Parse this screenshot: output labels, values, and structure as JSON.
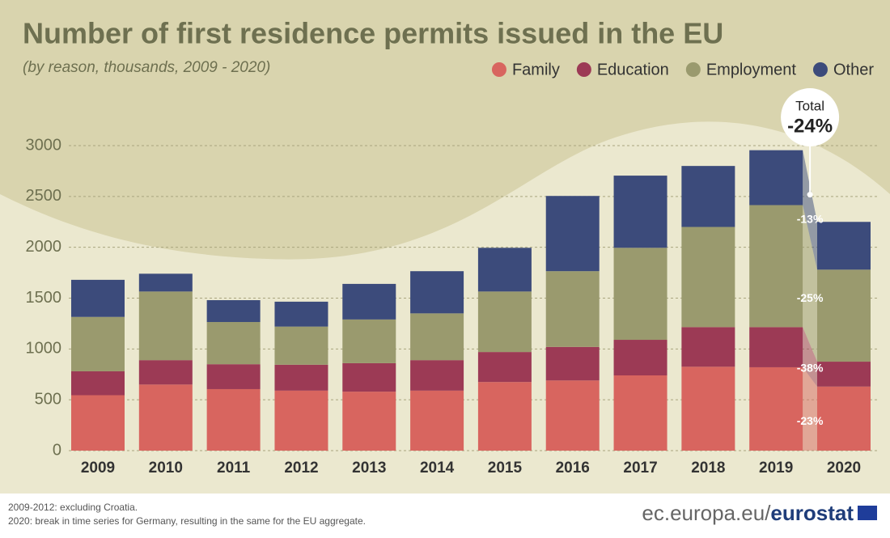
{
  "chart_data": {
    "type": "stacked-bar",
    "title": "Number of first residence permits issued in the EU",
    "subtitle": "(by reason, thousands, 2009 - 2020)",
    "categories": [
      "2009",
      "2010",
      "2011",
      "2012",
      "2013",
      "2014",
      "2015",
      "2016",
      "2017",
      "2018",
      "2019",
      "2020"
    ],
    "series": [
      {
        "name": "Family",
        "color": "#d8655f",
        "values": [
          545,
          650,
          605,
          590,
          580,
          590,
          675,
          690,
          740,
          825,
          820,
          630
        ],
        "change_label": "-23%"
      },
      {
        "name": "Education",
        "color": "#9c3a55",
        "values": [
          235,
          240,
          245,
          255,
          280,
          300,
          295,
          330,
          350,
          390,
          395,
          245
        ],
        "change_label": "-38%"
      },
      {
        "name": "Employment",
        "color": "#9a9a6e",
        "values": [
          535,
          675,
          415,
          375,
          430,
          460,
          595,
          745,
          905,
          985,
          1200,
          905
        ],
        "change_label": "-25%"
      },
      {
        "name": "Other",
        "color": "#3c4b7b",
        "values": [
          365,
          175,
          215,
          245,
          350,
          415,
          430,
          740,
          710,
          600,
          540,
          470
        ],
        "change_label": "-13%"
      }
    ],
    "ylim": [
      0,
      3000
    ],
    "yticks": [
      0,
      500,
      1000,
      1500,
      2000,
      2500,
      3000
    ],
    "grid": true,
    "legend": "top-right",
    "total_label": "Total",
    "total_change": "-24%",
    "notes": [
      "2009-2012: excluding Croatia.",
      "2020: break in time series for Germany, resulting in the same for the EU aggregate."
    ],
    "source": [
      "ec.europa.eu/",
      "eurostat"
    ]
  }
}
